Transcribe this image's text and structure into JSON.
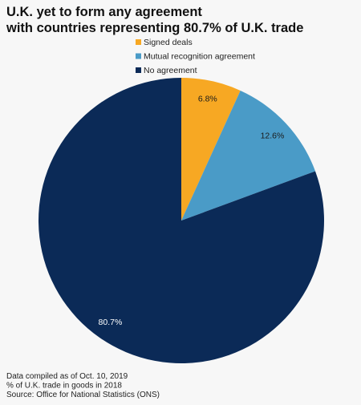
{
  "chart_data": {
    "type": "pie",
    "title": [
      "U.K. yet to form any agreement",
      "with countries representing 80.7% of U.K. trade"
    ],
    "categories": [
      "Signed deals",
      "Mutual recognition agreement",
      "No agreement"
    ],
    "values": [
      6.8,
      12.6,
      80.7
    ],
    "value_labels": [
      "6.8%",
      "12.6%",
      "80.7%"
    ],
    "colors": [
      "#f7a823",
      "#4a9bc7",
      "#0b2a57"
    ],
    "label_colors": [
      "#1a1a1a",
      "#1a1a1a",
      "#ffffff"
    ],
    "notes": [
      "Data compiled as of Oct. 10, 2019",
      "% of U.K. trade in goods in 2018",
      "Source: Office for National Statistics (ONS)"
    ]
  }
}
